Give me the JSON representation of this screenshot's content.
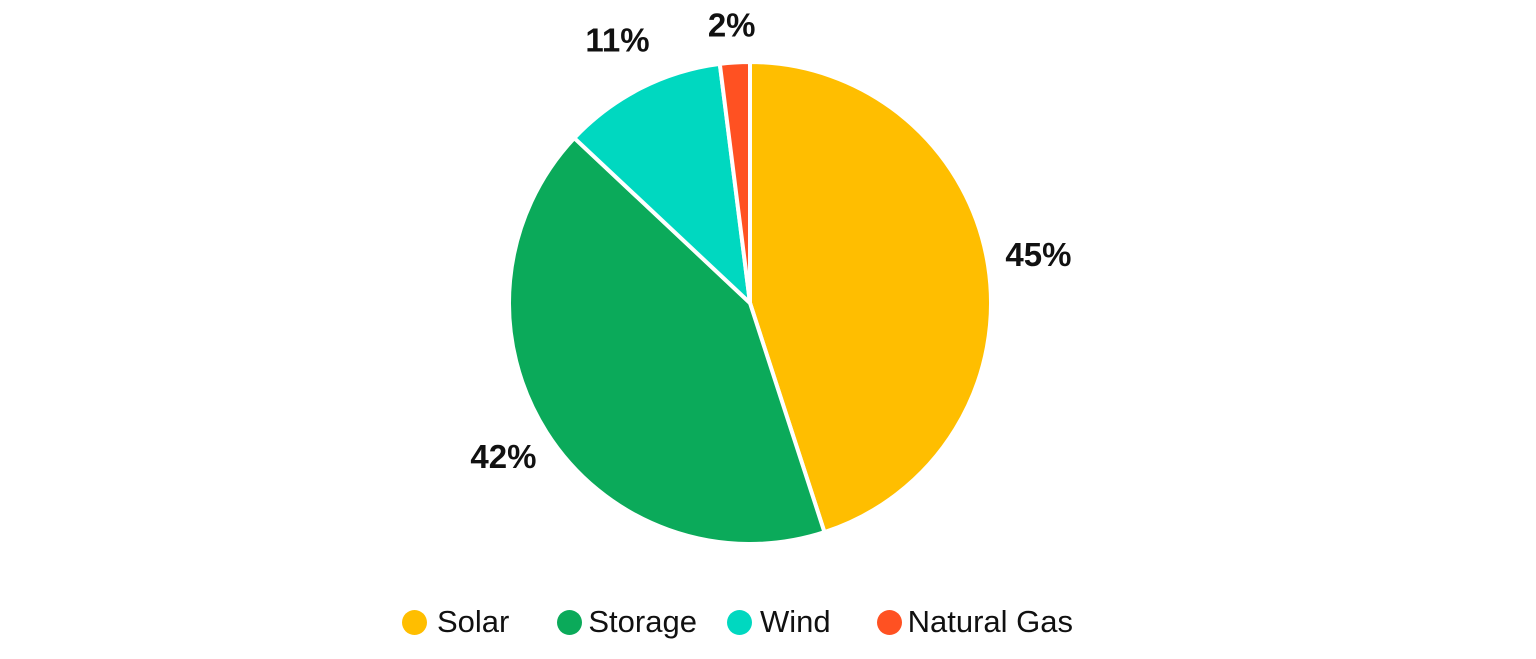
{
  "chart_data": {
    "type": "pie",
    "title": "",
    "categories": [
      "Solar",
      "Storage",
      "Wind",
      "Natural Gas"
    ],
    "values": [
      45,
      42,
      11,
      2
    ],
    "labels": [
      "45%",
      "42%",
      "11%",
      "2%"
    ],
    "colors": [
      "#FFBE00",
      "#0BAA5A",
      "#00D8C0",
      "#FF5122"
    ],
    "start_angle": "top, clockwise",
    "legend_position": "bottom"
  }
}
